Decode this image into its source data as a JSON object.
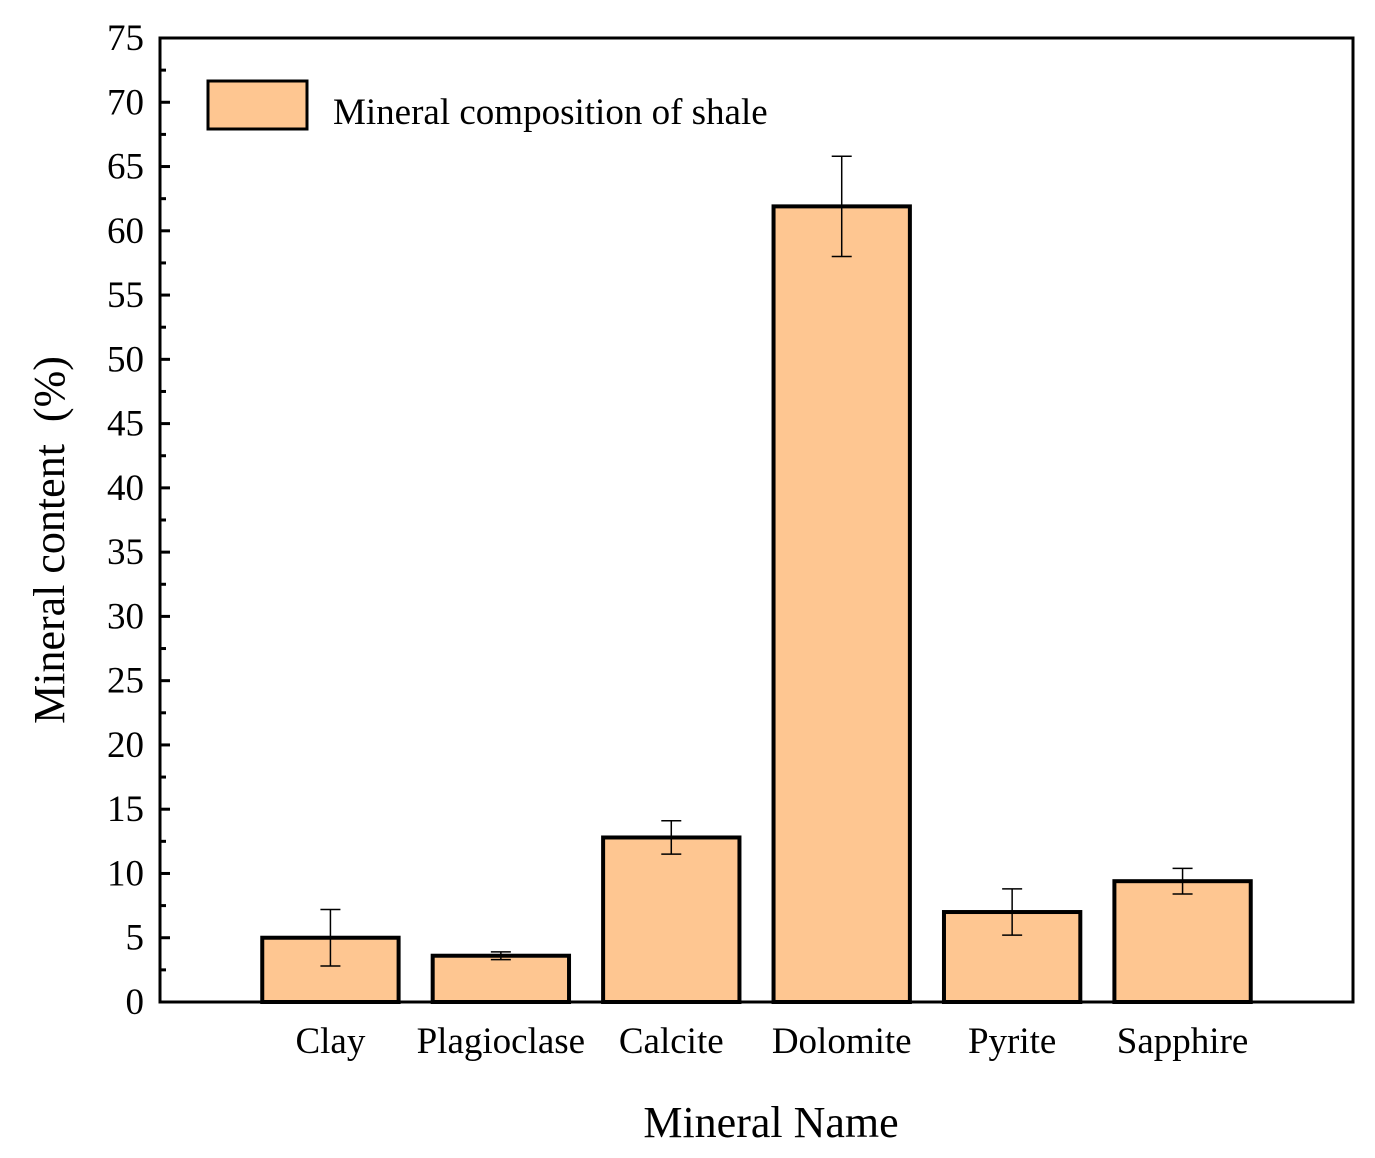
{
  "chart_data": {
    "type": "bar",
    "title": "",
    "xlabel": "Mineral Name",
    "ylabel": "Mineral content  (%)",
    "categories": [
      "Clay",
      "Plagioclase",
      "Calcite",
      "Dolomite",
      "Pyrite",
      "Sapphire"
    ],
    "series": [
      {
        "name": "Mineral composition of shale",
        "values": [
          5.0,
          3.6,
          12.8,
          61.9,
          7.0,
          9.4
        ],
        "error": [
          2.2,
          0.3,
          1.3,
          3.9,
          1.8,
          1.0
        ]
      }
    ],
    "ylim": [
      0,
      75
    ],
    "yticks": [
      0,
      5,
      10,
      15,
      20,
      25,
      30,
      35,
      40,
      45,
      50,
      55,
      60,
      65,
      70,
      75
    ],
    "xlim": [
      0,
      7
    ],
    "grid": false,
    "legend_position": "top-left",
    "colors": {
      "bar_fill": "#FEC691",
      "bar_stroke": "#000000",
      "axis": "#000000"
    }
  }
}
